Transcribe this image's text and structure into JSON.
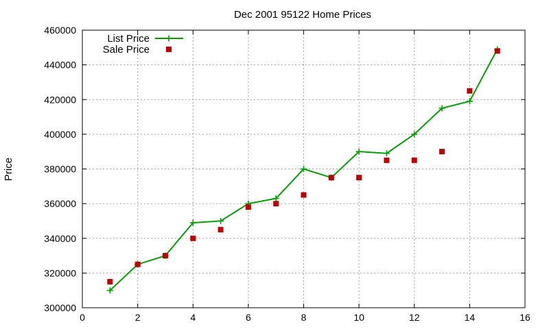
{
  "chart_data": {
    "type": "line",
    "title": "Dec 2001 95122 Home Prices",
    "xlabel": "",
    "ylabel": "Price",
    "xlim": [
      0,
      16
    ],
    "ylim": [
      300000,
      460000
    ],
    "x_ticks": [
      0,
      2,
      4,
      6,
      8,
      10,
      12,
      14,
      16
    ],
    "y_ticks": [
      300000,
      320000,
      340000,
      360000,
      380000,
      400000,
      420000,
      440000,
      460000
    ],
    "grid": true,
    "legend_position": "top-left",
    "series": [
      {
        "name": "List Price",
        "style": "line-plus",
        "color": "#00a000",
        "x": [
          1,
          2,
          3,
          4,
          5,
          6,
          7,
          8,
          9,
          10,
          11,
          12,
          13,
          14,
          15
        ],
        "values": [
          310000,
          325000,
          330000,
          349000,
          350000,
          360000,
          363000,
          380000,
          375000,
          390000,
          389000,
          400000,
          415000,
          419000,
          449000
        ]
      },
      {
        "name": "Sale Price",
        "style": "square-points",
        "color": "#c00000",
        "x": [
          1,
          2,
          3,
          4,
          5,
          6,
          7,
          8,
          9,
          10,
          11,
          12,
          13,
          14,
          15
        ],
        "values": [
          315000,
          325000,
          330000,
          340000,
          345000,
          358000,
          360000,
          365000,
          375000,
          375000,
          385000,
          385000,
          390000,
          425000,
          448000
        ]
      }
    ]
  }
}
